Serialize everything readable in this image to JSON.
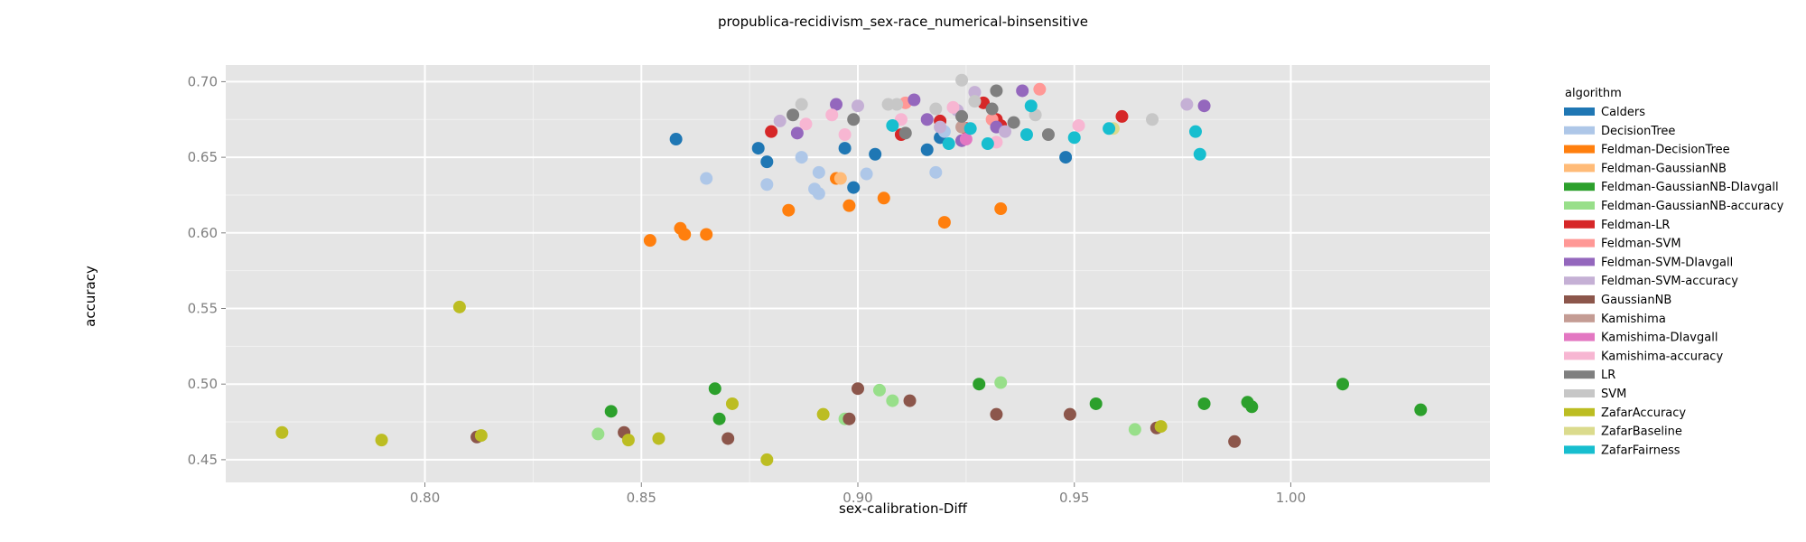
{
  "chart_data": {
    "type": "scatter",
    "title": "propublica-recidivism_sex-race_numerical-binsensitive",
    "xlabel": "sex-calibration-Diff",
    "ylabel": "accuracy",
    "xlim": [
      0.754,
      1.046
    ],
    "ylim": [
      0.435,
      0.711
    ],
    "xticks": [
      {
        "value": 0.8,
        "label": "0.80"
      },
      {
        "value": 0.85,
        "label": "0.85"
      },
      {
        "value": 0.9,
        "label": "0.90"
      },
      {
        "value": 0.95,
        "label": "0.95"
      },
      {
        "value": 1.0,
        "label": "1.00"
      }
    ],
    "yticks": [
      {
        "value": 0.45,
        "label": "0.45"
      },
      {
        "value": 0.5,
        "label": "0.50"
      },
      {
        "value": 0.55,
        "label": "0.55"
      },
      {
        "value": 0.6,
        "label": "0.60"
      },
      {
        "value": 0.65,
        "label": "0.65"
      },
      {
        "value": 0.7,
        "label": "0.70"
      }
    ],
    "grid": true,
    "legend_title": "algorithm",
    "legend_position": "right",
    "series": [
      {
        "name": "Calders",
        "color": "#1f77b4",
        "points": [
          [
            0.858,
            0.662
          ],
          [
            0.877,
            0.656
          ],
          [
            0.879,
            0.647
          ],
          [
            0.897,
            0.656
          ],
          [
            0.899,
            0.63
          ],
          [
            0.904,
            0.652
          ],
          [
            0.916,
            0.655
          ],
          [
            0.919,
            0.663
          ],
          [
            0.948,
            0.65
          ]
        ]
      },
      {
        "name": "DecisionTree",
        "color": "#aec7e8",
        "points": [
          [
            0.865,
            0.636
          ],
          [
            0.879,
            0.632
          ],
          [
            0.887,
            0.65
          ],
          [
            0.89,
            0.629
          ],
          [
            0.891,
            0.626
          ],
          [
            0.891,
            0.64
          ],
          [
            0.902,
            0.639
          ],
          [
            0.918,
            0.64
          ],
          [
            0.92,
            0.667
          ]
        ]
      },
      {
        "name": "Feldman-DecisionTree",
        "color": "#ff7f0e",
        "points": [
          [
            0.852,
            0.595
          ],
          [
            0.859,
            0.603
          ],
          [
            0.86,
            0.599
          ],
          [
            0.865,
            0.599
          ],
          [
            0.884,
            0.615
          ],
          [
            0.895,
            0.636
          ],
          [
            0.898,
            0.618
          ],
          [
            0.906,
            0.623
          ],
          [
            0.92,
            0.607
          ],
          [
            0.933,
            0.616
          ]
        ]
      },
      {
        "name": "Feldman-GaussianNB",
        "color": "#ffbb78",
        "points": [
          [
            0.896,
            0.636
          ]
        ]
      },
      {
        "name": "Feldman-GaussianNB-DIavgall",
        "color": "#2ca02c",
        "points": [
          [
            0.843,
            0.482
          ],
          [
            0.867,
            0.497
          ],
          [
            0.868,
            0.477
          ],
          [
            0.928,
            0.5
          ],
          [
            0.955,
            0.487
          ],
          [
            0.98,
            0.487
          ],
          [
            0.99,
            0.488
          ],
          [
            0.991,
            0.485
          ],
          [
            1.012,
            0.5
          ],
          [
            1.03,
            0.483
          ]
        ]
      },
      {
        "name": "Feldman-GaussianNB-accuracy",
        "color": "#98df8a",
        "points": [
          [
            0.84,
            0.467
          ],
          [
            0.897,
            0.477
          ],
          [
            0.905,
            0.496
          ],
          [
            0.908,
            0.489
          ],
          [
            0.933,
            0.501
          ],
          [
            0.964,
            0.47
          ]
        ]
      },
      {
        "name": "Feldman-LR",
        "color": "#d62728",
        "points": [
          [
            0.88,
            0.667
          ],
          [
            0.91,
            0.665
          ],
          [
            0.919,
            0.674
          ],
          [
            0.925,
            0.669
          ],
          [
            0.929,
            0.686
          ],
          [
            0.932,
            0.675
          ],
          [
            0.933,
            0.671
          ],
          [
            0.961,
            0.677
          ]
        ]
      },
      {
        "name": "Feldman-SVM",
        "color": "#ff9896",
        "points": [
          [
            0.911,
            0.686
          ],
          [
            0.924,
            0.661
          ],
          [
            0.931,
            0.675
          ],
          [
            0.942,
            0.695
          ]
        ]
      },
      {
        "name": "Feldman-SVM-DIavgall",
        "color": "#9467bd",
        "points": [
          [
            0.886,
            0.666
          ],
          [
            0.895,
            0.685
          ],
          [
            0.913,
            0.688
          ],
          [
            0.916,
            0.675
          ],
          [
            0.924,
            0.661
          ],
          [
            0.932,
            0.67
          ],
          [
            0.938,
            0.694
          ],
          [
            0.98,
            0.684
          ]
        ]
      },
      {
        "name": "Feldman-SVM-accuracy",
        "color": "#c5b0d5",
        "points": [
          [
            0.882,
            0.674
          ],
          [
            0.9,
            0.684
          ],
          [
            0.919,
            0.67
          ],
          [
            0.923,
            0.681
          ],
          [
            0.927,
            0.693
          ],
          [
            0.934,
            0.667
          ],
          [
            0.976,
            0.685
          ]
        ]
      },
      {
        "name": "GaussianNB",
        "color": "#8c564b",
        "points": [
          [
            0.812,
            0.465
          ],
          [
            0.846,
            0.468
          ],
          [
            0.87,
            0.464
          ],
          [
            0.898,
            0.477
          ],
          [
            0.9,
            0.497
          ],
          [
            0.912,
            0.489
          ],
          [
            0.932,
            0.48
          ],
          [
            0.949,
            0.48
          ],
          [
            0.969,
            0.471
          ],
          [
            0.987,
            0.462
          ]
        ]
      },
      {
        "name": "Kamishima",
        "color": "#c49c94",
        "points": [
          [
            0.924,
            0.67
          ]
        ]
      },
      {
        "name": "Kamishima-DIavgall",
        "color": "#e377c2",
        "points": [
          [
            0.925,
            0.662
          ]
        ]
      },
      {
        "name": "Kamishima-accuracy",
        "color": "#f7b6d2",
        "points": [
          [
            0.888,
            0.672
          ],
          [
            0.894,
            0.678
          ],
          [
            0.897,
            0.665
          ],
          [
            0.91,
            0.675
          ],
          [
            0.922,
            0.683
          ],
          [
            0.932,
            0.66
          ],
          [
            0.951,
            0.671
          ]
        ]
      },
      {
        "name": "LR",
        "color": "#7f7f7f",
        "points": [
          [
            0.885,
            0.678
          ],
          [
            0.899,
            0.675
          ],
          [
            0.911,
            0.666
          ],
          [
            0.924,
            0.677
          ],
          [
            0.931,
            0.682
          ],
          [
            0.932,
            0.694
          ],
          [
            0.936,
            0.673
          ],
          [
            0.944,
            0.665
          ]
        ]
      },
      {
        "name": "SVM",
        "color": "#c7c7c7",
        "points": [
          [
            0.887,
            0.685
          ],
          [
            0.907,
            0.685
          ],
          [
            0.909,
            0.685
          ],
          [
            0.918,
            0.682
          ],
          [
            0.924,
            0.701
          ],
          [
            0.927,
            0.687
          ],
          [
            0.941,
            0.678
          ],
          [
            0.968,
            0.675
          ]
        ]
      },
      {
        "name": "ZafarAccuracy",
        "color": "#bcbd22",
        "points": [
          [
            0.767,
            0.468
          ],
          [
            0.79,
            0.463
          ],
          [
            0.808,
            0.551
          ],
          [
            0.813,
            0.466
          ],
          [
            0.847,
            0.463
          ],
          [
            0.854,
            0.464
          ],
          [
            0.871,
            0.487
          ],
          [
            0.879,
            0.45
          ],
          [
            0.892,
            0.48
          ],
          [
            0.97,
            0.472
          ]
        ]
      },
      {
        "name": "ZafarBaseline",
        "color": "#dbdb8d",
        "points": [
          [
            0.959,
            0.669
          ]
        ]
      },
      {
        "name": "ZafarFairness",
        "color": "#17becf",
        "points": [
          [
            0.908,
            0.671
          ],
          [
            0.921,
            0.659
          ],
          [
            0.926,
            0.669
          ],
          [
            0.93,
            0.659
          ],
          [
            0.939,
            0.665
          ],
          [
            0.94,
            0.684
          ],
          [
            0.95,
            0.663
          ],
          [
            0.958,
            0.669
          ],
          [
            0.978,
            0.667
          ],
          [
            0.979,
            0.652
          ]
        ]
      }
    ]
  }
}
